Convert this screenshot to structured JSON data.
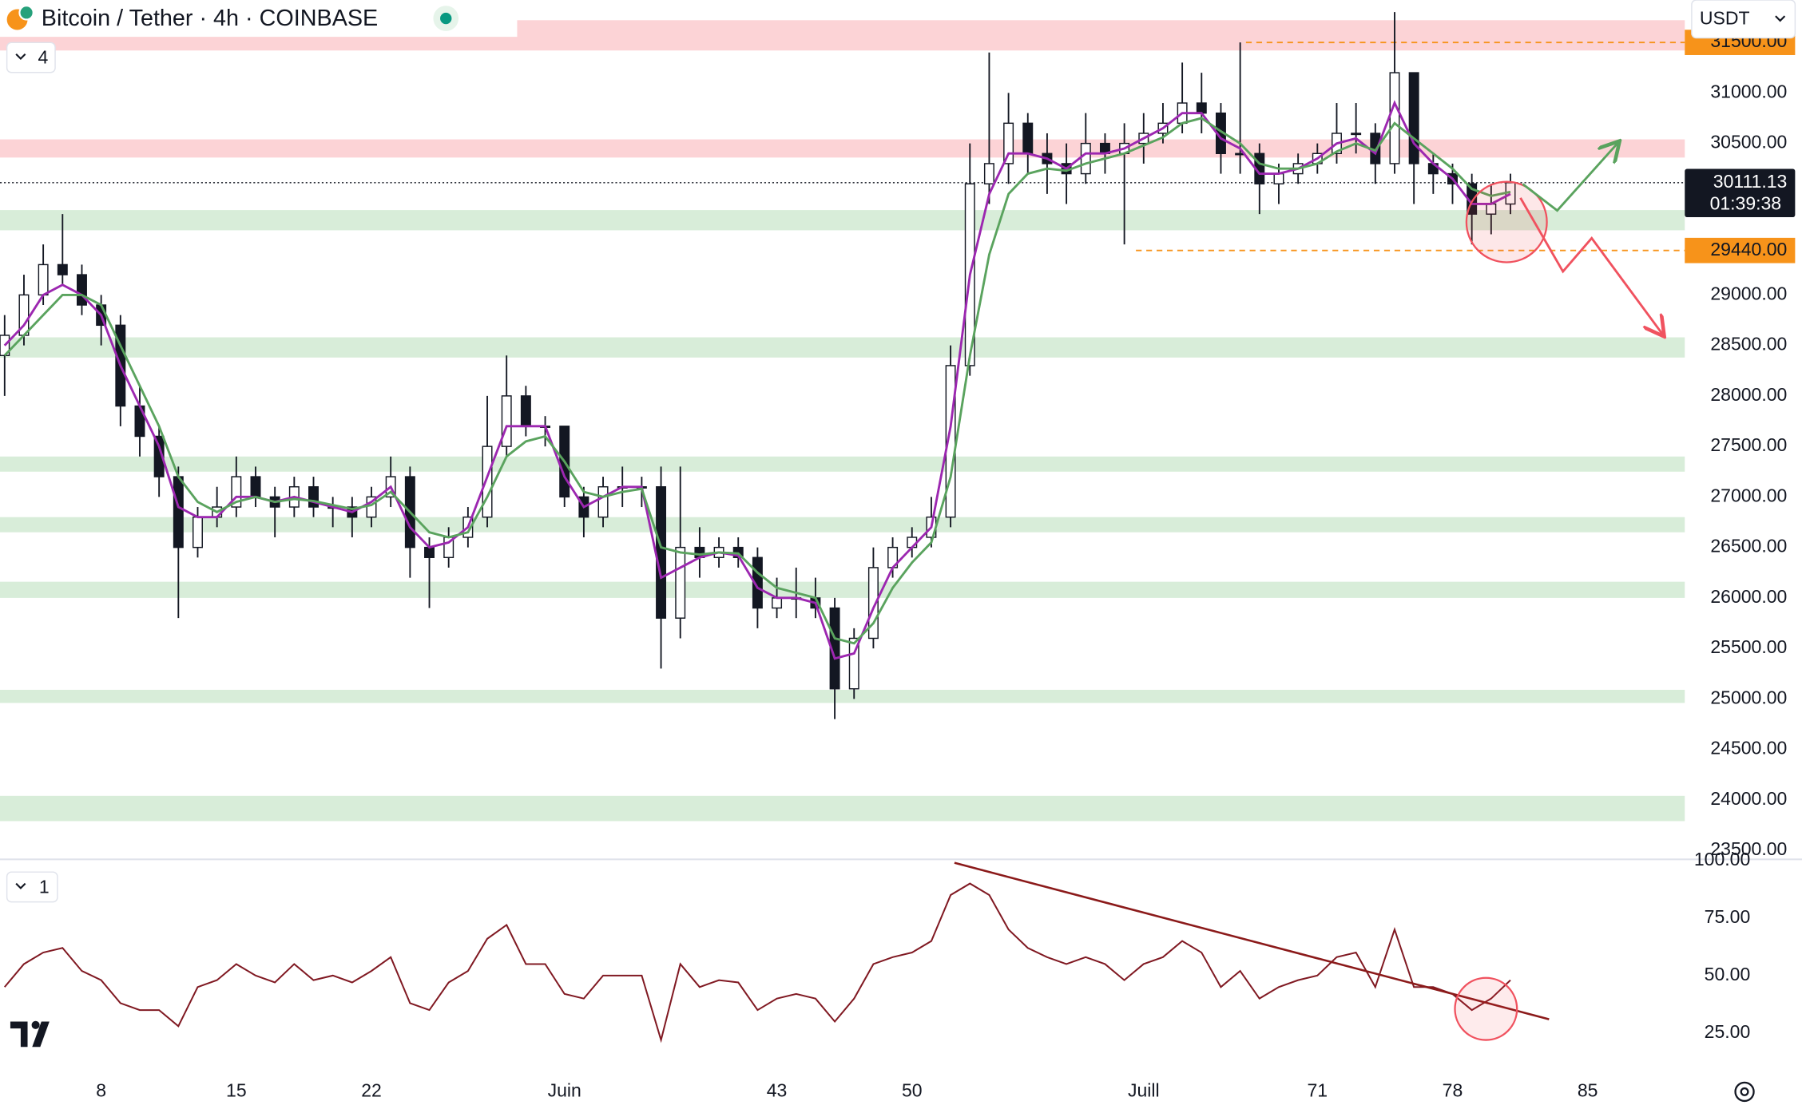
{
  "header": {
    "title": "Bitcoin / Tether · 4h · COINBASE",
    "currency": "USDT",
    "main_pane_toggle": "4",
    "rsi_pane_toggle": "1"
  },
  "chart_data": [
    {
      "type": "candlestick",
      "x": [
        3,
        4,
        5,
        6,
        7,
        8,
        9,
        10,
        11,
        12,
        13,
        14,
        15,
        16,
        17,
        18,
        19,
        20,
        21,
        22,
        23,
        24,
        25,
        26,
        27,
        28,
        29,
        30,
        31,
        32,
        33,
        34,
        35,
        36,
        37,
        38,
        39,
        40,
        41,
        42,
        43,
        44,
        45,
        46,
        47,
        48,
        49,
        50,
        51,
        52,
        53,
        54,
        55,
        56,
        57,
        58,
        59,
        60,
        61,
        62,
        63,
        64,
        65,
        66,
        67,
        68,
        69,
        70,
        71,
        72,
        73,
        74,
        75,
        76,
        77,
        78,
        79,
        80,
        81
      ],
      "open": [
        28400,
        28600,
        29000,
        29300,
        29200,
        28900,
        28700,
        27900,
        27600,
        27200,
        26500,
        26800,
        26900,
        27200,
        27000,
        26900,
        27100,
        26900,
        26900,
        26800,
        27000,
        27200,
        26500,
        26400,
        26600,
        26800,
        27500,
        28000,
        27700,
        27700,
        27000,
        26800,
        27100,
        27100,
        27100,
        25800,
        26500,
        26400,
        26500,
        26400,
        25900,
        26000,
        26000,
        25900,
        25100,
        25600,
        26300,
        26500,
        26600,
        26800,
        28300,
        30100,
        30300,
        30700,
        30400,
        30300,
        30200,
        30500,
        30400,
        30500,
        30600,
        30700,
        30900,
        30800,
        30400,
        30400,
        30100,
        30200,
        30300,
        30400,
        30600,
        30600,
        30300,
        31200,
        30300,
        30200,
        30100,
        29800,
        29900
      ],
      "high": [
        28800,
        29200,
        29500,
        29800,
        29300,
        29000,
        28800,
        28100,
        27700,
        27300,
        26900,
        27100,
        27400,
        27300,
        27100,
        27200,
        27200,
        27000,
        27000,
        27100,
        27400,
        27300,
        26600,
        26700,
        26900,
        28000,
        28400,
        28100,
        27800,
        27700,
        27100,
        27200,
        27300,
        27200,
        27300,
        27300,
        26700,
        26600,
        26600,
        26500,
        26200,
        26300,
        26200,
        26000,
        25700,
        26500,
        26600,
        26700,
        27000,
        28500,
        30500,
        31400,
        31000,
        30800,
        30600,
        30500,
        30800,
        30600,
        30700,
        30800,
        30900,
        31300,
        31200,
        30900,
        31500,
        30500,
        30300,
        30400,
        30500,
        30900,
        30900,
        30700,
        31800,
        31200,
        30400,
        30300,
        30200,
        30100,
        30200
      ],
      "low": [
        28000,
        28500,
        28900,
        29100,
        28800,
        28500,
        27700,
        27400,
        27000,
        25800,
        26400,
        26700,
        26800,
        26900,
        26600,
        26800,
        26800,
        26700,
        26600,
        26700,
        26900,
        26200,
        25900,
        26300,
        26500,
        26700,
        27400,
        27600,
        27500,
        26900,
        26600,
        26700,
        26900,
        26900,
        25300,
        25600,
        26200,
        26300,
        26300,
        25700,
        25800,
        25800,
        25800,
        24800,
        25000,
        25500,
        26200,
        26400,
        26500,
        26700,
        28200,
        29900,
        30100,
        30200,
        30000,
        29900,
        30100,
        30200,
        29500,
        30300,
        30500,
        30600,
        30600,
        30200,
        30200,
        29800,
        29900,
        30100,
        30200,
        30300,
        30400,
        30100,
        30200,
        29900,
        30000,
        29900,
        29500,
        29600,
        29800
      ],
      "close": [
        28600,
        29000,
        29300,
        29200,
        28900,
        28700,
        27900,
        27600,
        27200,
        26500,
        26800,
        26900,
        27200,
        27000,
        26900,
        27100,
        26900,
        26900,
        26800,
        27000,
        27200,
        26500,
        26400,
        26600,
        26800,
        27500,
        28000,
        27700,
        27700,
        27000,
        26800,
        27100,
        27100,
        27100,
        25800,
        26500,
        26400,
        26500,
        26400,
        25900,
        26000,
        26000,
        25900,
        25100,
        25600,
        26300,
        26500,
        26600,
        26800,
        28300,
        30100,
        30300,
        30700,
        30400,
        30300,
        30200,
        30500,
        30400,
        30500,
        30600,
        30700,
        30900,
        30800,
        30400,
        30400,
        30100,
        30200,
        30300,
        30400,
        30600,
        30600,
        30300,
        31200,
        30300,
        30200,
        30100,
        29800,
        29900,
        30111.13
      ],
      "up_color": "#ffffff",
      "down_color": "#131722",
      "series": [
        {
          "color": "#9c27b0",
          "values": [
            28500,
            28700,
            29000,
            29100,
            29000,
            28800,
            28300,
            27900,
            27500,
            26900,
            26800,
            26800,
            27000,
            27000,
            26950,
            27000,
            26950,
            26900,
            26850,
            26950,
            27100,
            26700,
            26500,
            26550,
            26700,
            27200,
            27700,
            27700,
            27700,
            27200,
            26900,
            27000,
            27100,
            27100,
            26200,
            26300,
            26400,
            26450,
            26420,
            26100,
            26000,
            26000,
            25950,
            25400,
            25450,
            25900,
            26300,
            26500,
            26700,
            27700,
            29200,
            30000,
            30400,
            30400,
            30350,
            30250,
            30400,
            30400,
            30450,
            30550,
            30650,
            30800,
            30800,
            30550,
            30450,
            30200,
            30200,
            30250,
            30350,
            30500,
            30550,
            30400,
            30900,
            30500,
            30300,
            30150,
            29900,
            29900,
            30000
          ]
        },
        {
          "color": "#5aa35e",
          "values": [
            28400,
            28600,
            28800,
            29000,
            29000,
            28900,
            28500,
            28100,
            27700,
            27200,
            26950,
            26850,
            26950,
            27000,
            26950,
            26980,
            26960,
            26920,
            26880,
            26920,
            27050,
            26850,
            26650,
            26600,
            26650,
            27000,
            27400,
            27550,
            27600,
            27350,
            27050,
            27000,
            27050,
            27080,
            26500,
            26450,
            26430,
            26450,
            26440,
            26250,
            26100,
            26050,
            26000,
            25600,
            25550,
            25750,
            26100,
            26350,
            26550,
            27200,
            28400,
            29400,
            30000,
            30200,
            30250,
            30230,
            30300,
            30350,
            30400,
            30480,
            30560,
            30700,
            30750,
            30620,
            30500,
            30300,
            30250,
            30250,
            30300,
            30420,
            30500,
            30430,
            30700,
            30550,
            30400,
            30250,
            30050,
            29980,
            30020
          ]
        }
      ],
      "xlim": [
        2.76,
        90.03
      ],
      "xticks": [
        8,
        15,
        22,
        {
          "value": 32,
          "label": "Juin"
        },
        43,
        50,
        {
          "value": 62,
          "label": "Juill"
        },
        71,
        78,
        85
      ],
      "ylim": [
        23400,
        31920
      ],
      "yticks": [
        {
          "value": 23500,
          "label": "23500.00"
        },
        {
          "value": 24000,
          "label": "24000.00"
        },
        {
          "value": 24500,
          "label": "24500.00"
        },
        {
          "value": 25000,
          "label": "25000.00"
        },
        {
          "value": 25500,
          "label": "25500.00"
        },
        {
          "value": 26000,
          "label": "26000.00"
        },
        {
          "value": 26500,
          "label": "26500.00"
        },
        {
          "value": 27000,
          "label": "27000.00"
        },
        {
          "value": 27500,
          "label": "27500.00"
        },
        {
          "value": 28000,
          "label": "28000.00"
        },
        {
          "value": 28500,
          "label": "28500.00"
        },
        {
          "value": 29000,
          "label": "29000.00"
        },
        {
          "value": 30500,
          "label": "30500.00"
        },
        {
          "value": 31000,
          "label": "31000.00"
        }
      ],
      "zones": [
        {
          "color": "rgba(242,54,69,0.22)",
          "range": [
            31420,
            31720
          ]
        },
        {
          "color": "rgba(242,54,69,0.22)",
          "range": [
            30360,
            30540
          ]
        },
        {
          "color": "rgba(76,175,80,0.22)",
          "range": [
            29640,
            29840
          ]
        },
        {
          "color": "rgba(76,175,80,0.22)",
          "range": [
            28380,
            28580
          ]
        },
        {
          "color": "rgba(76,175,80,0.22)",
          "range": [
            27250,
            27400
          ]
        },
        {
          "color": "rgba(76,175,80,0.22)",
          "range": [
            26650,
            26800
          ]
        },
        {
          "color": "rgba(76,175,80,0.22)",
          "range": [
            26000,
            26160
          ]
        },
        {
          "color": "rgba(76,175,80,0.22)",
          "range": [
            24960,
            25090
          ]
        },
        {
          "color": "rgba(76,175,80,0.22)",
          "range": [
            23790,
            24040
          ]
        }
      ],
      "levels": [
        {
          "value": 31500,
          "label": "31500.00",
          "from": 67.3,
          "color": "#f7931a"
        },
        {
          "value": 29440,
          "label": "29440.00",
          "from": 61.6,
          "color": "#f7931a"
        }
      ],
      "last_price": {
        "value": 30111.13,
        "countdown": "01:39:38"
      }
    },
    {
      "type": "line",
      "values": [
        45,
        55,
        60,
        62,
        52,
        48,
        38,
        35,
        35,
        28,
        45,
        48,
        55,
        50,
        47,
        55,
        48,
        50,
        47,
        52,
        58,
        38,
        35,
        47,
        52,
        66,
        72,
        55,
        55,
        42,
        40,
        50,
        50,
        50,
        22,
        55,
        45,
        48,
        47,
        35,
        40,
        42,
        40,
        30,
        40,
        55,
        58,
        60,
        65,
        85,
        90,
        85,
        70,
        62,
        58,
        55,
        58,
        55,
        48,
        55,
        58,
        65,
        60,
        45,
        52,
        40,
        45,
        48,
        50,
        58,
        60,
        45,
        70,
        45,
        45,
        42,
        35,
        40,
        48
      ],
      "color": "#801922",
      "ylim": [
        9,
        100
      ],
      "yticks": [
        {
          "value": 100,
          "label": "100.00"
        },
        {
          "value": 75,
          "label": "75.00"
        },
        {
          "value": 50,
          "label": "50.00"
        },
        {
          "value": 25,
          "label": "25.00"
        }
      ],
      "trendline": {
        "x": [
          52.2,
          83
        ],
        "values": [
          99,
          31
        ],
        "color": "#8b1a1a"
      }
    }
  ]
}
